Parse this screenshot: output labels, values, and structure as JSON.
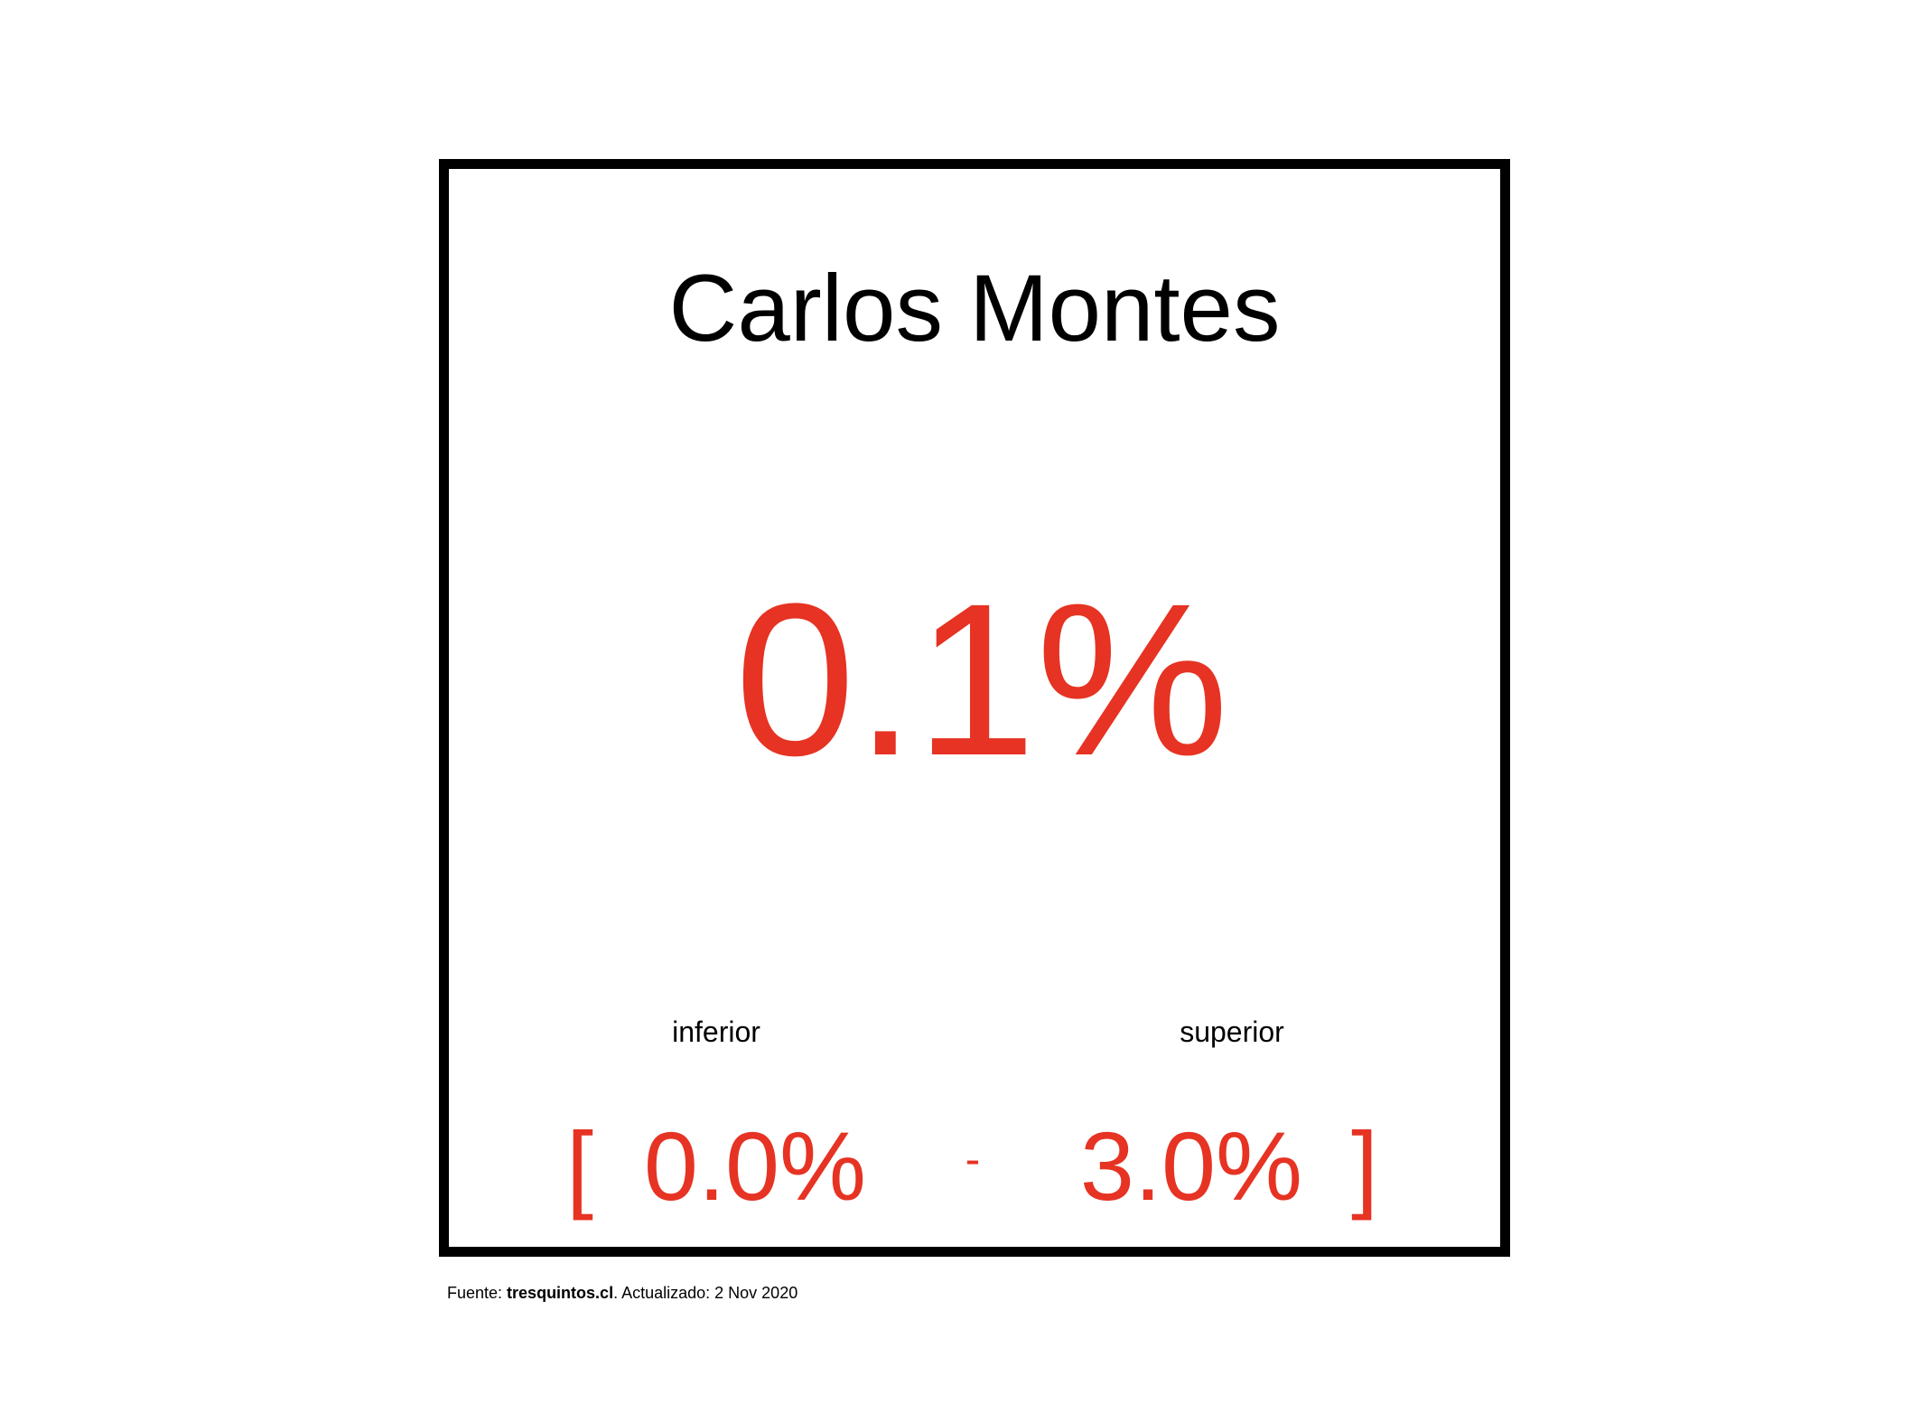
{
  "card": {
    "title": "Carlos Montes",
    "value": "0.1%",
    "lower_label": "inferior",
    "upper_label": "superior",
    "open_bracket": "[",
    "lower_value": "0.0%",
    "separator": "-",
    "upper_value": "3.0%",
    "close_bracket": "]"
  },
  "footer": {
    "prefix": "Fuente: ",
    "source": "tresquintos.cl",
    "suffix": ". Actualizado: 2 Nov 2020"
  },
  "colors": {
    "accent": "#E63323",
    "text": "#000000",
    "border": "#000000"
  }
}
